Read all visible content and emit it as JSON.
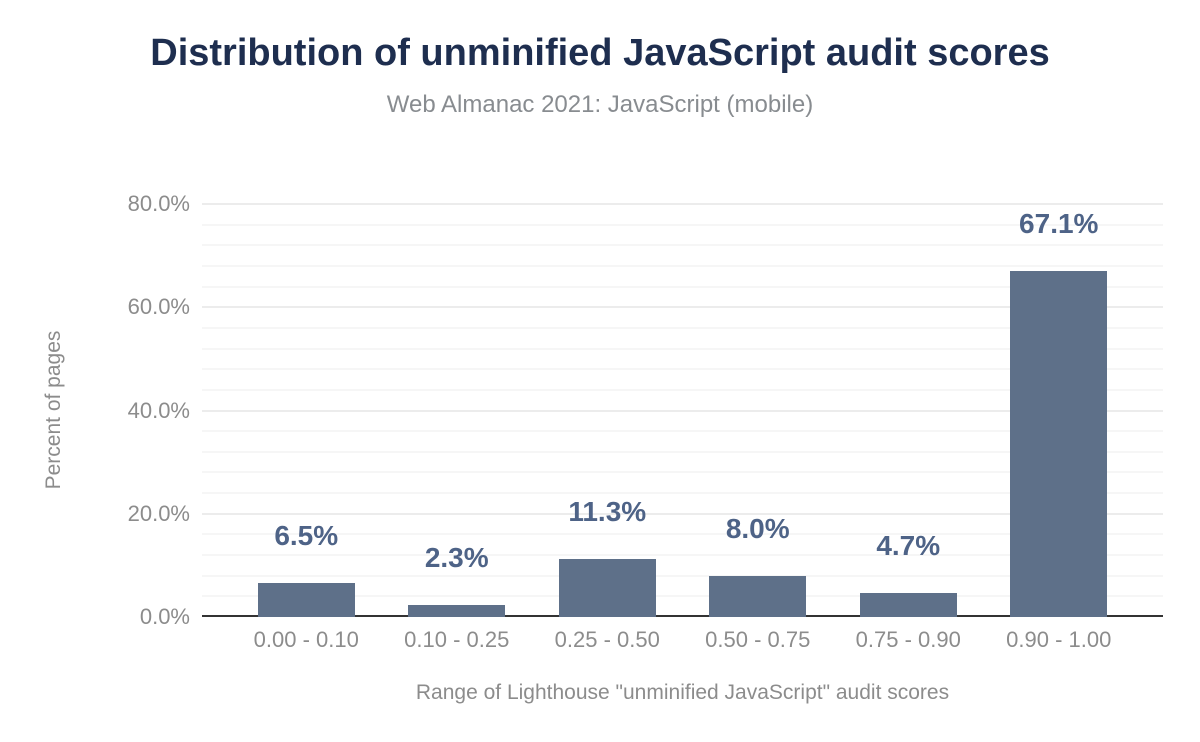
{
  "chart_data": {
    "type": "bar",
    "title": "Distribution of unminified JavaScript audit scores",
    "subtitle": "Web Almanac 2021: JavaScript (mobile)",
    "xlabel": "Range of Lighthouse \"unminified JavaScript\" audit scores",
    "ylabel": "Percent of pages",
    "categories": [
      "0.00 - 0.10",
      "0.10 - 0.25",
      "0.25 - 0.50",
      "0.50 - 0.75",
      "0.75 - 0.90",
      "0.90 - 1.00"
    ],
    "values": [
      6.5,
      2.3,
      11.3,
      8.0,
      4.7,
      67.1
    ],
    "value_labels": [
      "6.5%",
      "2.3%",
      "11.3%",
      "8.0%",
      "4.7%",
      "67.1%"
    ],
    "y_ticks": [
      {
        "value": 0,
        "label": "0.0%"
      },
      {
        "value": 20,
        "label": "20.0%"
      },
      {
        "value": 40,
        "label": "40.0%"
      },
      {
        "value": 60,
        "label": "60.0%"
      },
      {
        "value": 80,
        "label": "80.0%"
      }
    ],
    "ylim": [
      0,
      80
    ],
    "grid": {
      "minor_step": 4,
      "major_step": 20,
      "horizontal": true,
      "vertical": false
    },
    "legend": "none",
    "colors": {
      "bar": "#5e7089",
      "value_label": "#4e6387",
      "title": "#1e2e4f",
      "subtitle": "#888c90",
      "tick_label": "#8c8c8c",
      "axis_line": "#333333",
      "grid_major": "#ececec",
      "grid_minor": "#f6f6f6",
      "background": "#ffffff"
    }
  }
}
